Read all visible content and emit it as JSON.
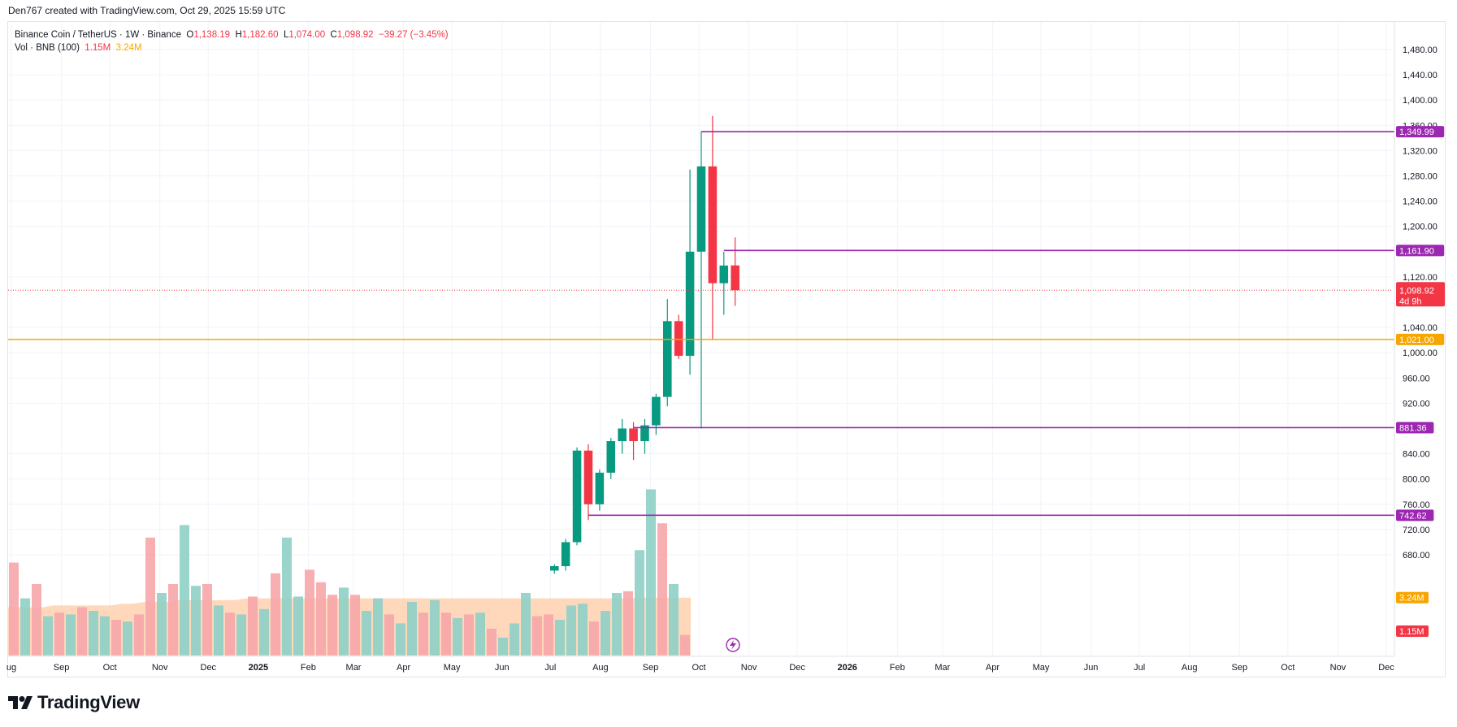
{
  "header": {
    "credit": "Den767 created with TradingView.com, Oct 29, 2025 15:59 UTC"
  },
  "legend": {
    "symbol": "Binance Coin / TetherUS · 1W · Binance",
    "o_label": "O",
    "o_value": "1,138.19",
    "h_label": "H",
    "h_value": "1,182.60",
    "l_label": "L",
    "l_value": "1,074.00",
    "c_label": "C",
    "c_value": "1,098.92",
    "change": "−39.27 (−3.45%)",
    "vol_label": "Vol · BNB (100)",
    "vol_value": "1.15M",
    "vol_ma_value": "3.24M"
  },
  "footer": {
    "brand": "TradingView"
  },
  "colors": {
    "up": "#089981",
    "down": "#f23645",
    "up_vol": "#8fd0c6",
    "down_vol": "#f7a6a8",
    "vol_ma": "#ffd1b0",
    "level": "#9c27b0",
    "support": "#f7a600",
    "grid": "#f0f3fa",
    "axis_text": "#131722"
  },
  "chart_data": {
    "type": "candlestick",
    "interval": "1W",
    "y_axis": {
      "ylim": [
        680,
        1500
      ],
      "ticks": [
        "1,480.00",
        "1,440.00",
        "1,400.00",
        "1,360.00",
        "1,320.00",
        "1,280.00",
        "1,240.00",
        "1,200.00",
        "1,120.00",
        "1,040.00",
        "1,000.00",
        "960.00",
        "920.00",
        "840.00",
        "800.00",
        "760.00",
        "720.00",
        "680.00"
      ]
    },
    "x_axis": {
      "ticks": [
        {
          "label": "ug",
          "date": "2024-08-01"
        },
        {
          "label": "Sep",
          "date": "2024-09-01"
        },
        {
          "label": "Oct",
          "date": "2024-10-01"
        },
        {
          "label": "Nov",
          "date": "2024-11-01"
        },
        {
          "label": "Dec",
          "date": "2024-12-01"
        },
        {
          "label": "2025",
          "date": "2025-01-01",
          "bold": true
        },
        {
          "label": "Feb",
          "date": "2025-02-01"
        },
        {
          "label": "Mar",
          "date": "2025-03-01"
        },
        {
          "label": "Apr",
          "date": "2025-04-01"
        },
        {
          "label": "May",
          "date": "2025-05-01"
        },
        {
          "label": "Jun",
          "date": "2025-06-01"
        },
        {
          "label": "Jul",
          "date": "2025-07-01"
        },
        {
          "label": "Aug",
          "date": "2025-08-01"
        },
        {
          "label": "Sep",
          "date": "2025-09-01"
        },
        {
          "label": "Oct",
          "date": "2025-10-01"
        },
        {
          "label": "Nov",
          "date": "2025-11-01"
        },
        {
          "label": "Dec",
          "date": "2025-12-01"
        },
        {
          "label": "2026",
          "date": "2026-01-01",
          "bold": true
        },
        {
          "label": "Feb",
          "date": "2026-02-01"
        },
        {
          "label": "Mar",
          "date": "2026-03-01"
        },
        {
          "label": "Apr",
          "date": "2026-04-01"
        },
        {
          "label": "May",
          "date": "2026-05-01"
        },
        {
          "label": "Jun",
          "date": "2026-06-01"
        },
        {
          "label": "Jul",
          "date": "2026-07-01"
        },
        {
          "label": "Aug",
          "date": "2026-08-01"
        },
        {
          "label": "Sep",
          "date": "2026-09-01"
        },
        {
          "label": "Oct",
          "date": "2026-10-01"
        },
        {
          "label": "Nov",
          "date": "2026-11-01"
        },
        {
          "label": "Dec",
          "date": "2026-12-01"
        }
      ]
    },
    "candles": [
      {
        "date": "2025-06-30",
        "o": 655,
        "h": 665,
        "l": 650,
        "c": 662
      },
      {
        "date": "2025-07-07",
        "o": 662,
        "h": 705,
        "l": 655,
        "c": 700
      },
      {
        "date": "2025-07-14",
        "o": 700,
        "h": 850,
        "l": 695,
        "c": 845
      },
      {
        "date": "2025-07-21",
        "o": 845,
        "h": 855,
        "l": 735,
        "c": 760
      },
      {
        "date": "2025-07-28",
        "o": 760,
        "h": 815,
        "l": 750,
        "c": 810
      },
      {
        "date": "2025-08-04",
        "o": 810,
        "h": 865,
        "l": 800,
        "c": 860
      },
      {
        "date": "2025-08-11",
        "o": 860,
        "h": 895,
        "l": 840,
        "c": 880
      },
      {
        "date": "2025-08-18",
        "o": 880,
        "h": 890,
        "l": 830,
        "c": 860
      },
      {
        "date": "2025-08-25",
        "o": 860,
        "h": 895,
        "l": 840,
        "c": 885
      },
      {
        "date": "2025-09-01",
        "o": 885,
        "h": 935,
        "l": 870,
        "c": 930
      },
      {
        "date": "2025-09-08",
        "o": 930,
        "h": 1085,
        "l": 915,
        "c": 1050
      },
      {
        "date": "2025-09-15",
        "o": 1050,
        "h": 1060,
        "l": 990,
        "c": 995
      },
      {
        "date": "2025-09-22",
        "o": 995,
        "h": 1290,
        "l": 965,
        "c": 1160
      },
      {
        "date": "2025-09-29",
        "o": 1160,
        "h": 1350,
        "l": 880,
        "c": 1295
      },
      {
        "date": "2025-10-06",
        "o": 1295,
        "h": 1375,
        "l": 1020,
        "c": 1110
      },
      {
        "date": "2025-10-13",
        "o": 1110,
        "h": 1160,
        "l": 1060,
        "c": 1138
      },
      {
        "date": "2025-10-20",
        "o": 1138.19,
        "h": 1182.6,
        "l": 1074,
        "c": 1098.92
      }
    ],
    "levels": [
      {
        "label": "1,349.99",
        "value": 1349.99,
        "color": "#9c27b0",
        "from": "2025-09-29"
      },
      {
        "label": "1,161.90",
        "value": 1161.9,
        "color": "#9c27b0",
        "from": "2025-10-13"
      },
      {
        "label": "881.36",
        "value": 881.36,
        "color": "#9c27b0",
        "from": "2025-08-18"
      },
      {
        "label": "742.62",
        "value": 742.62,
        "color": "#9c27b0",
        "from": "2025-07-21"
      },
      {
        "label": "1,021.00",
        "value": 1021,
        "color": "#f7a600",
        "from": "2024-08-01"
      }
    ],
    "last_price": {
      "label": "1,098.92",
      "countdown": "4d 9h",
      "value": 1098.92
    },
    "volume": {
      "scale_max": 10,
      "last_label": "1.15M",
      "ma_label": "3.24M",
      "bars": [
        {
          "v": 5.2,
          "up": false
        },
        {
          "v": 3.2,
          "up": true
        },
        {
          "v": 4.0,
          "up": false
        },
        {
          "v": 2.2,
          "up": true
        },
        {
          "v": 2.4,
          "up": false
        },
        {
          "v": 2.3,
          "up": true
        },
        {
          "v": 2.7,
          "up": false
        },
        {
          "v": 2.5,
          "up": true
        },
        {
          "v": 2.2,
          "up": true
        },
        {
          "v": 2.0,
          "up": false
        },
        {
          "v": 1.9,
          "up": true
        },
        {
          "v": 2.3,
          "up": false
        },
        {
          "v": 6.6,
          "up": false
        },
        {
          "v": 3.5,
          "up": true
        },
        {
          "v": 4.0,
          "up": false
        },
        {
          "v": 7.3,
          "up": true
        },
        {
          "v": 3.9,
          "up": true
        },
        {
          "v": 4.0,
          "up": false
        },
        {
          "v": 2.8,
          "up": true
        },
        {
          "v": 2.4,
          "up": false
        },
        {
          "v": 2.3,
          "up": true
        },
        {
          "v": 3.3,
          "up": false
        },
        {
          "v": 2.6,
          "up": true
        },
        {
          "v": 4.6,
          "up": false
        },
        {
          "v": 6.6,
          "up": true
        },
        {
          "v": 3.3,
          "up": true
        },
        {
          "v": 4.8,
          "up": false
        },
        {
          "v": 4.1,
          "up": false
        },
        {
          "v": 3.4,
          "up": false
        },
        {
          "v": 3.8,
          "up": true
        },
        {
          "v": 3.4,
          "up": false
        },
        {
          "v": 2.5,
          "up": true
        },
        {
          "v": 3.2,
          "up": true
        },
        {
          "v": 2.3,
          "up": false
        },
        {
          "v": 1.8,
          "up": true
        },
        {
          "v": 3.0,
          "up": true
        },
        {
          "v": 2.4,
          "up": false
        },
        {
          "v": 3.1,
          "up": true
        },
        {
          "v": 2.4,
          "up": false
        },
        {
          "v": 2.1,
          "up": true
        },
        {
          "v": 2.3,
          "up": false
        },
        {
          "v": 2.4,
          "up": true
        },
        {
          "v": 1.5,
          "up": false
        },
        {
          "v": 1.0,
          "up": true
        },
        {
          "v": 1.8,
          "up": true
        },
        {
          "v": 3.5,
          "up": true
        },
        {
          "v": 2.2,
          "up": false
        },
        {
          "v": 2.3,
          "up": false
        },
        {
          "v": 2.0,
          "up": true
        },
        {
          "v": 2.8,
          "up": true
        },
        {
          "v": 2.9,
          "up": true
        },
        {
          "v": 1.9,
          "up": false
        },
        {
          "v": 2.5,
          "up": true
        },
        {
          "v": 3.5,
          "up": true
        },
        {
          "v": 3.6,
          "up": false
        },
        {
          "v": 5.9,
          "up": true
        },
        {
          "v": 9.3,
          "up": true
        },
        {
          "v": 7.4,
          "up": false
        },
        {
          "v": 4.0,
          "up": true
        },
        {
          "v": 1.15,
          "up": false
        }
      ],
      "ma": [
        2.7,
        2.7,
        2.7,
        2.7,
        2.8,
        2.8,
        2.8,
        2.8,
        2.8,
        2.8,
        2.9,
        2.9,
        3.0,
        3.0,
        3.0,
        3.1,
        3.1,
        3.1,
        3.1,
        3.1,
        3.1,
        3.2,
        3.2,
        3.2,
        3.2,
        3.2,
        3.2,
        3.2,
        3.2,
        3.2,
        3.2,
        3.2,
        3.2,
        3.2,
        3.2,
        3.2,
        3.2,
        3.2,
        3.2,
        3.2,
        3.2,
        3.2,
        3.2,
        3.2,
        3.2,
        3.2,
        3.2,
        3.2,
        3.2,
        3.2,
        3.2,
        3.2,
        3.2,
        3.2,
        3.2,
        3.2,
        3.24,
        3.24,
        3.24,
        3.24
      ]
    }
  }
}
